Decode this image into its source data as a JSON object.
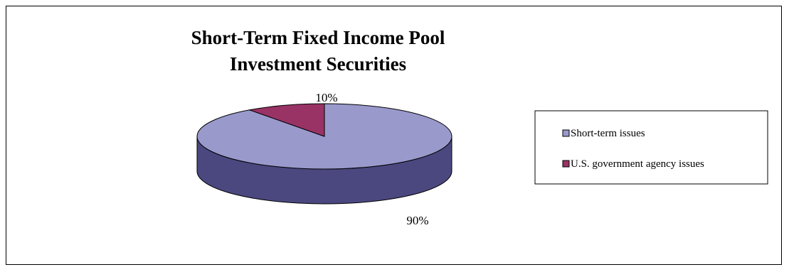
{
  "chart_data": {
    "type": "pie",
    "title_lines": [
      "Short-Term Fixed Income Pool",
      "Investment Securities"
    ],
    "categories": [
      "Short-term issues",
      "U.S. government agency issues"
    ],
    "values": [
      90,
      10
    ],
    "data_labels": [
      "90%",
      "10%"
    ],
    "colors": {
      "Short-term issues": {
        "top": "#9999CC",
        "side": "#4B4880"
      },
      "U.S. government agency issues": {
        "top": "#993366",
        "side": "#5E1F40"
      }
    },
    "legend_position": "right",
    "three_d": true
  }
}
